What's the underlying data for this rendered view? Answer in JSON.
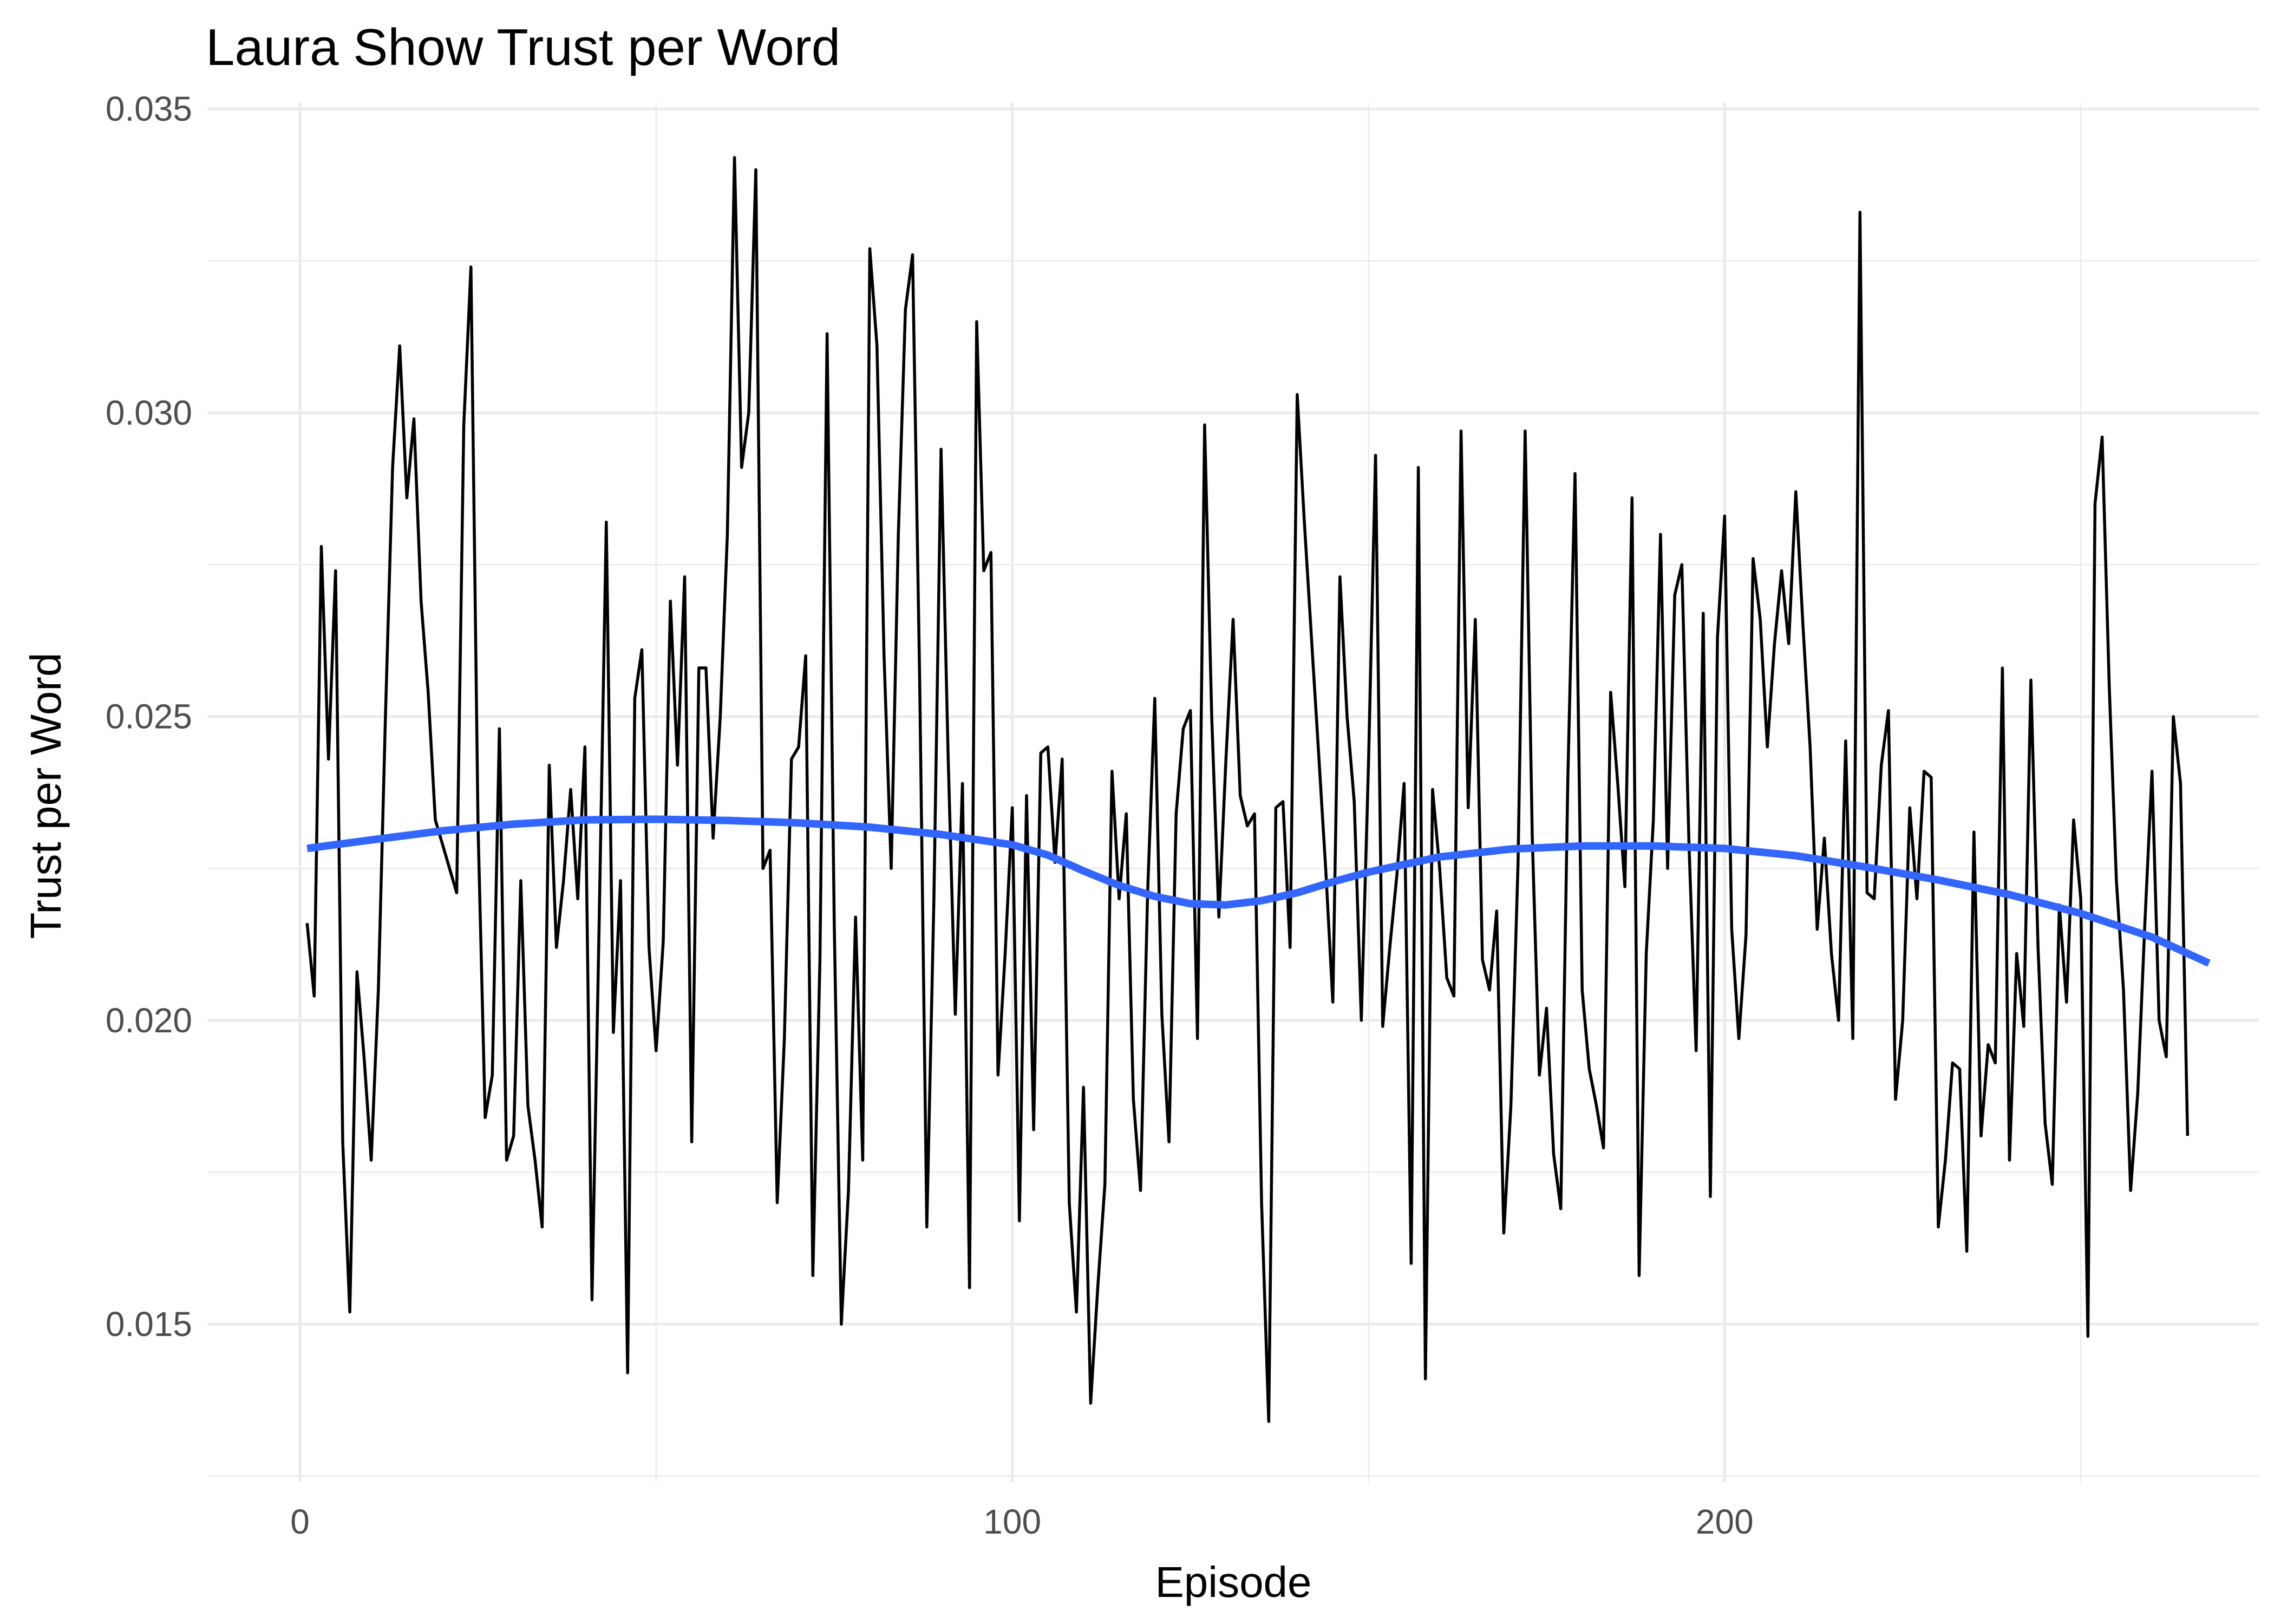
{
  "chart_data": {
    "type": "line",
    "title": "Laura Show Trust per Word",
    "xlabel": "Episode",
    "ylabel": "Trust per Word",
    "xlim": [
      -13,
      275
    ],
    "ylim": [
      0.0124,
      0.0351
    ],
    "x_ticks": [
      0,
      100,
      200
    ],
    "x_tick_labels": [
      "0",
      "100",
      "200"
    ],
    "y_ticks": [
      0.015,
      0.02,
      0.025,
      0.03,
      0.035
    ],
    "y_tick_labels": [
      "0.015",
      "0.020",
      "0.025",
      "0.030",
      "0.035"
    ],
    "grid": true,
    "colors": {
      "series": "#000000",
      "smooth": "#3366ff"
    },
    "series": [
      {
        "values": [
          0.0216,
          0.0204,
          0.0278,
          0.0243,
          0.0274,
          0.018,
          0.0152,
          0.0208,
          0.0194,
          0.0177,
          0.0205,
          0.025,
          0.0291,
          0.0311,
          0.0286,
          0.0299,
          0.0269,
          0.0254,
          0.0233,
          0.0229,
          0.0225,
          0.0221,
          0.0298,
          0.0324,
          0.0232,
          0.0184,
          0.0191,
          0.0248,
          0.0177,
          0.0181,
          0.0223,
          0.0186,
          0.0177,
          0.0166,
          0.0242,
          0.0212,
          0.0223,
          0.0238,
          0.022,
          0.0245,
          0.0154,
          0.0216,
          0.0282,
          0.0198,
          0.0223,
          0.0142,
          0.0253,
          0.0261,
          0.0212,
          0.0195,
          0.0213,
          0.0269,
          0.0242,
          0.0273,
          0.018,
          0.0258,
          0.0258,
          0.023,
          0.025,
          0.028,
          0.0342,
          0.0291,
          0.03,
          0.034,
          0.0225,
          0.0228,
          0.017,
          0.0197,
          0.0243,
          0.0245,
          0.026,
          0.0158,
          0.021,
          0.0313,
          0.0216,
          0.015,
          0.0172,
          0.0217,
          0.0177,
          0.0327,
          0.0311,
          0.026,
          0.0225,
          0.028,
          0.0317,
          0.0326,
          0.0256,
          0.0166,
          0.022,
          0.0294,
          0.0243,
          0.0201,
          0.0239,
          0.0156,
          0.0315,
          0.0274,
          0.0277,
          0.0191,
          0.0211,
          0.0235,
          0.0167,
          0.0237,
          0.0182,
          0.0244,
          0.0245,
          0.0226,
          0.0243,
          0.017,
          0.0152,
          0.0189,
          0.0137,
          0.0156,
          0.0173,
          0.0241,
          0.022,
          0.0234,
          0.0187,
          0.0172,
          0.0221,
          0.0253,
          0.0201,
          0.018,
          0.0234,
          0.0248,
          0.0251,
          0.0197,
          0.0298,
          0.025,
          0.0217,
          0.0243,
          0.0266,
          0.0237,
          0.0232,
          0.0234,
          0.017,
          0.0134,
          0.0235,
          0.0236,
          0.0212,
          0.0303,
          0.0282,
          0.0263,
          0.0244,
          0.0225,
          0.0203,
          0.0273,
          0.025,
          0.0236,
          0.02,
          0.0242,
          0.0293,
          0.0199,
          0.0212,
          0.0224,
          0.0239,
          0.016,
          0.0291,
          0.0141,
          0.0238,
          0.0225,
          0.0207,
          0.0204,
          0.0297,
          0.0235,
          0.0266,
          0.021,
          0.0205,
          0.0218,
          0.0165,
          0.0186,
          0.0226,
          0.0297,
          0.023,
          0.0191,
          0.0202,
          0.0178,
          0.0169,
          0.024,
          0.029,
          0.0205,
          0.0192,
          0.0186,
          0.0179,
          0.0254,
          0.0239,
          0.0222,
          0.0286,
          0.0158,
          0.0211,
          0.0233,
          0.028,
          0.0225,
          0.027,
          0.0275,
          0.0229,
          0.0195,
          0.0267,
          0.0171,
          0.0263,
          0.0283,
          0.0215,
          0.0197,
          0.0214,
          0.0276,
          0.0266,
          0.0245,
          0.0262,
          0.0274,
          0.0262,
          0.0287,
          0.0265,
          0.0245,
          0.0215,
          0.023,
          0.0211,
          0.02,
          0.0246,
          0.0197,
          0.0333,
          0.0221,
          0.022,
          0.0242,
          0.0251,
          0.0187,
          0.02,
          0.0235,
          0.022,
          0.0241,
          0.024,
          0.0166,
          0.0177,
          0.0193,
          0.0192,
          0.0162,
          0.0231,
          0.0181,
          0.0196,
          0.0193,
          0.0258,
          0.0177,
          0.0211,
          0.0199,
          0.0256,
          0.0212,
          0.0183,
          0.0173,
          0.0219,
          0.0203,
          0.0233,
          0.022,
          0.0148,
          0.0285,
          0.0296,
          0.0255,
          0.0223,
          0.0205,
          0.0172,
          0.0188,
          0.0216,
          0.0241,
          0.02,
          0.0194,
          0.025,
          0.0239,
          0.0181
        ]
      }
    ],
    "smooth": {
      "x": [
        1,
        10,
        20,
        30,
        40,
        50,
        60,
        70,
        80,
        90,
        100,
        105,
        110,
        115,
        120,
        125,
        130,
        135,
        140,
        145,
        150,
        160,
        170,
        180,
        190,
        200,
        210,
        220,
        230,
        240,
        250,
        260,
        268
      ],
      "y": [
        0.02283,
        0.02297,
        0.02312,
        0.02323,
        0.0233,
        0.02331,
        0.02329,
        0.02325,
        0.02318,
        0.02306,
        0.02289,
        0.02272,
        0.02246,
        0.02222,
        0.02204,
        0.02192,
        0.0219,
        0.02197,
        0.0221,
        0.02228,
        0.02244,
        0.02269,
        0.02282,
        0.02287,
        0.02287,
        0.02283,
        0.02271,
        0.02252,
        0.02231,
        0.02207,
        0.02176,
        0.02137,
        0.02094
      ]
    }
  }
}
